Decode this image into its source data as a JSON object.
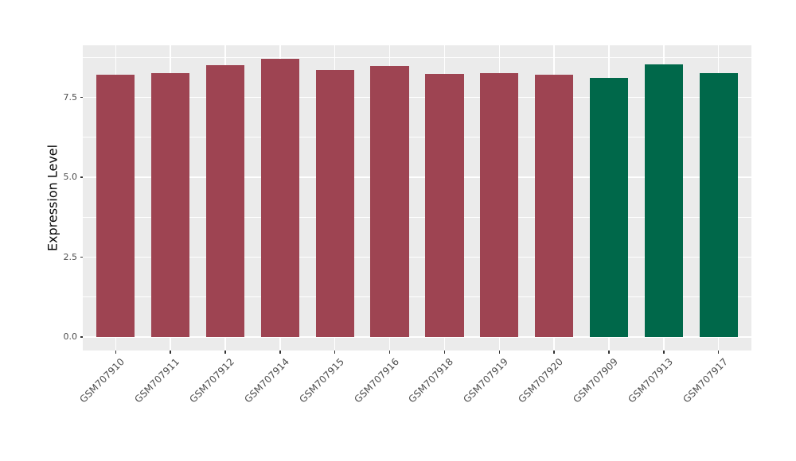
{
  "chart_data": {
    "type": "bar",
    "title": "",
    "xlabel": "",
    "ylabel": "Expression Level",
    "ylim": [
      -0.42,
      9.13
    ],
    "yticks": [
      {
        "value": 0.0,
        "label": "0.0"
      },
      {
        "value": 2.5,
        "label": "2.5"
      },
      {
        "value": 5.0,
        "label": "5.0"
      },
      {
        "value": 7.5,
        "label": "7.5"
      }
    ],
    "minor_yticks": [
      1.25,
      3.75,
      6.25,
      8.75
    ],
    "grid": "on",
    "legend": "none",
    "panel_background": "#EBEBEB",
    "gridline_color": "#FFFFFF",
    "tick_mark_color": "#333333",
    "tick_label_color": "#4D4D4D",
    "palette": {
      "maroon": "#9E4452",
      "green": "#00684A"
    },
    "categories": [
      "GSM707910",
      "GSM707911",
      "GSM707912",
      "GSM707914",
      "GSM707915",
      "GSM707916",
      "GSM707918",
      "GSM707919",
      "GSM707920",
      "GSM707909",
      "GSM707913",
      "GSM707917"
    ],
    "values": [
      8.2,
      8.25,
      8.51,
      8.7,
      8.35,
      8.49,
      8.23,
      8.26,
      8.21,
      8.1,
      8.53,
      8.25
    ],
    "bar_colors": [
      "#9E4452",
      "#9E4452",
      "#9E4452",
      "#9E4452",
      "#9E4452",
      "#9E4452",
      "#9E4452",
      "#9E4452",
      "#9E4452",
      "#00684A",
      "#00684A",
      "#00684A"
    ],
    "bar_width_fraction": 0.7,
    "category_edge_expansion": 0.6
  }
}
